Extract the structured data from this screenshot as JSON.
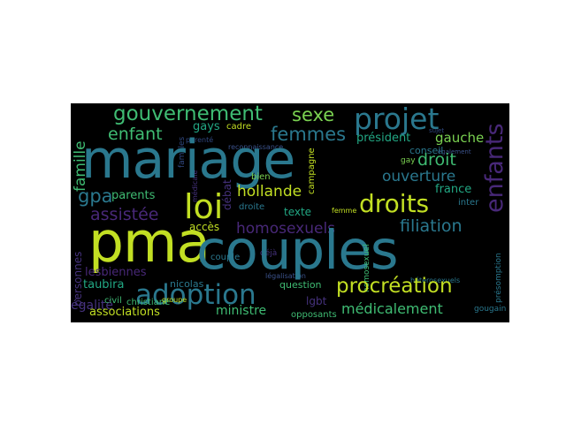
{
  "wordcloud": {
    "background": "#000000",
    "words": {
      "mariage": "mariage",
      "couples": "couples",
      "pma": "pma",
      "loi": "loi",
      "projet": "projet",
      "adoption": "adoption",
      "droits": "droits",
      "procreation": "procréation",
      "gouvernement": "gouvernement",
      "enfants": "enfants",
      "sexe": "sexe",
      "femmes": "femmes",
      "enfant": "enfant",
      "droit": "droit",
      "filiation": "filiation",
      "homosexuels": "homosexuels",
      "assistee": "assistée",
      "gpa": "gpa",
      "famille": "famille",
      "medicalement": "médicalement",
      "ouverture": "ouverture",
      "hollande": "hollande",
      "gauche": "gauche",
      "president": "président",
      "france": "france",
      "parents": "parents",
      "lesbiennes": "lesbiennes",
      "taubira": "taubira",
      "egalite": "égalité",
      "associations": "associations",
      "ministre": "ministre",
      "acces": "accès",
      "texte": "texte",
      "gays": "gays",
      "bien": "bien",
      "cadre": "cadre",
      "debat": "débat",
      "nicolas": "nicolas",
      "lgbt": "lgbt",
      "opposants": "opposants",
      "personnes": "personnes",
      "couple": "couple",
      "question": "question",
      "presomption": "présomption",
      "heterosexuels": "hétérosexuels",
      "conseil": "conseil",
      "inter": "inter",
      "civil": "civil",
      "christiane": "christiane",
      "groupe": "groupe",
      "campagne": "campagne",
      "droite": "droite",
      "femme": "femme",
      "homosexuel": "homosexuel",
      "gay": "gay",
      "gougain": "gougain",
      "familles": "familles",
      "medicale": "médicale",
      "parente": "parenté",
      "reconnaissance": "reconnaissance",
      "deja": "déjà",
      "legalisation": "légalisation",
      "egalement": "également",
      "sujet": "sujet"
    },
    "colors": {
      "yellow": "#c2df23",
      "teal": "#2a788e",
      "green": "#3fbc73",
      "cyan": "#22a884",
      "purple": "#46327e",
      "violet": "#482878",
      "blue": "#3b528b",
      "dimblue": "#30477f",
      "lightgreen": "#7ad151"
    }
  }
}
